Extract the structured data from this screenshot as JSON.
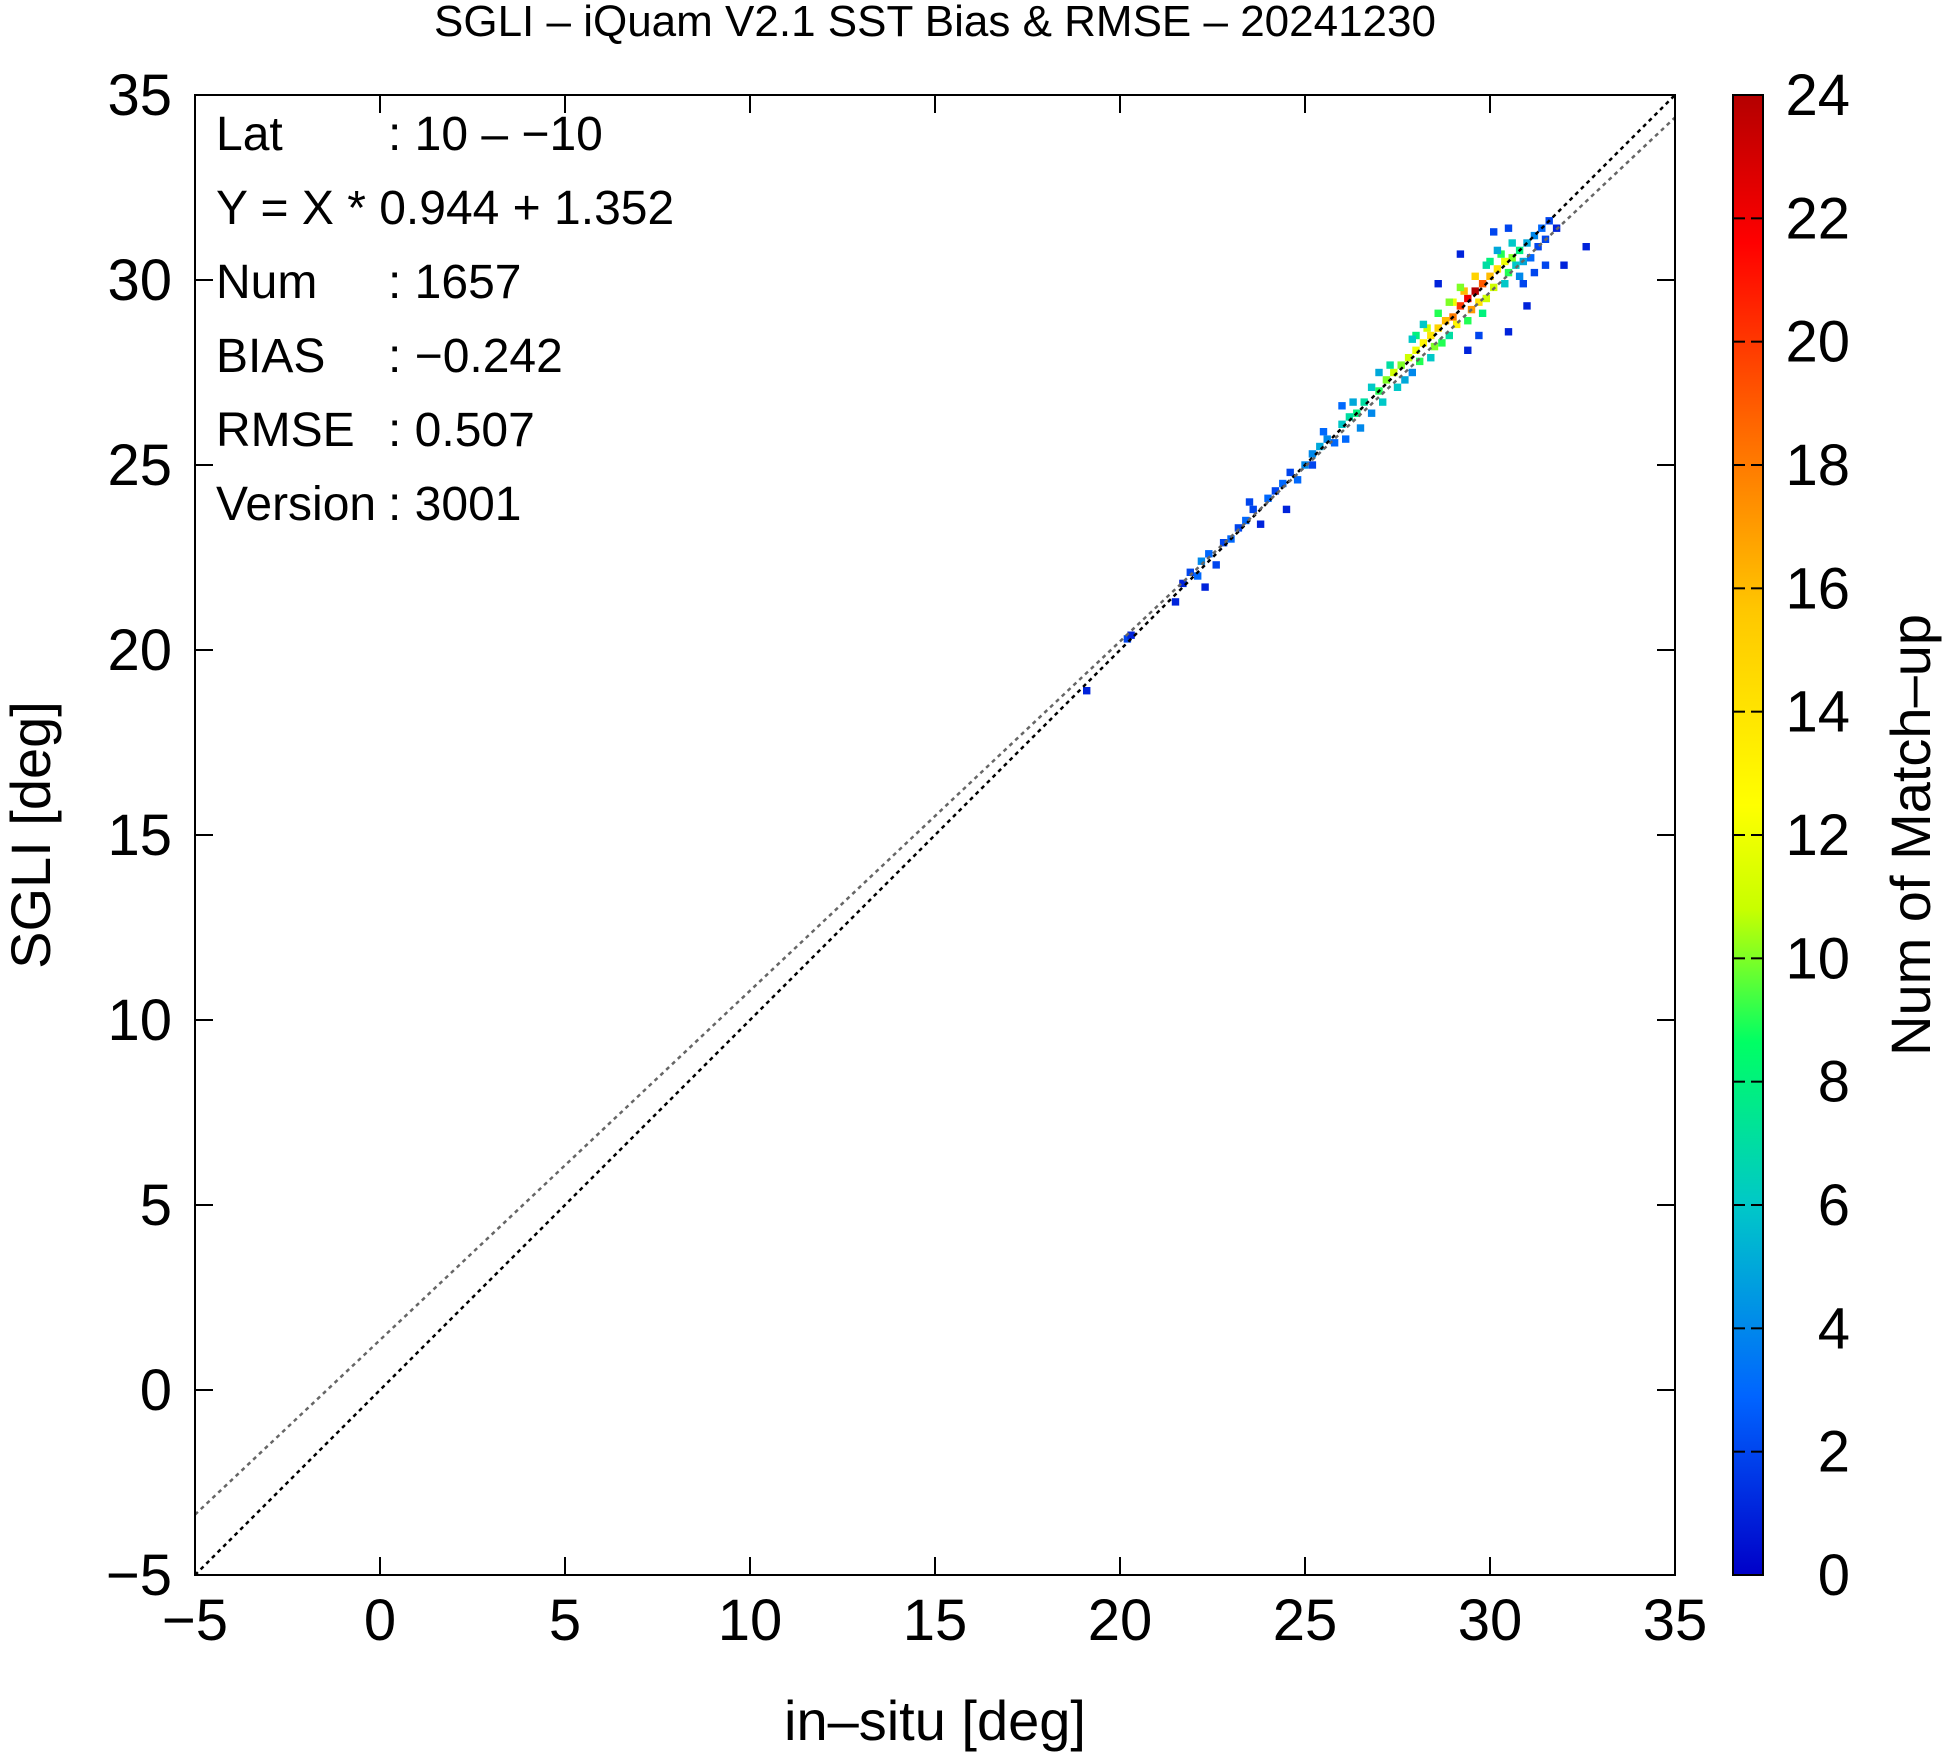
{
  "chart_data": {
    "type": "heatmap",
    "title": "SGLI – iQuam V2.1 SST Bias & RMSE  – 20241230",
    "xlabel": "in–situ [deg]",
    "ylabel": "SGLI [deg]",
    "xlim": [
      -5,
      35
    ],
    "ylim": [
      -5,
      35
    ],
    "x_ticks": [
      "−5",
      "0",
      "5",
      "10",
      "15",
      "20",
      "25",
      "30",
      "35"
    ],
    "y_ticks": [
      "−5",
      "0",
      "5",
      "10",
      "15",
      "20",
      "25",
      "30",
      "35"
    ],
    "grid": false,
    "colorbar": {
      "label": "Num of Match–up",
      "range": [
        0,
        24
      ],
      "ticks": [
        "0",
        "2",
        "4",
        "6",
        "8",
        "10",
        "12",
        "14",
        "16",
        "18",
        "20",
        "22",
        "24"
      ],
      "colors": [
        "#0000c8",
        "#0064ff",
        "#00c8c8",
        "#00ff64",
        "#c8ff00",
        "#ffff00",
        "#ffc800",
        "#ff6400",
        "#ff0000",
        "#b40000"
      ]
    },
    "reference_lines": [
      {
        "kind": "one-to-one",
        "slope": 1.0,
        "intercept": 0.0,
        "color": "#000000",
        "style": "dotted"
      },
      {
        "kind": "regression",
        "slope": 0.944,
        "intercept": 1.352,
        "color": "#666666",
        "style": "dotted"
      }
    ],
    "stats": [
      {
        "label": "Lat",
        "value": ": 10 – −10"
      },
      {
        "label": "Y = X * 0.944 + 1.352",
        "value": ""
      },
      {
        "label": "Num",
        "value": ": 1657"
      },
      {
        "label": "BIAS",
        "value": ": −0.242"
      },
      {
        "label": "RMSE",
        "value": ": 0.507"
      },
      {
        "label": "Version",
        "value": ": 3001"
      }
    ],
    "cells": [
      [
        19.1,
        18.9,
        1
      ],
      [
        20.2,
        20.3,
        2
      ],
      [
        20.3,
        20.4,
        1
      ],
      [
        21.5,
        21.3,
        1
      ],
      [
        21.7,
        21.8,
        1
      ],
      [
        21.9,
        22.1,
        2
      ],
      [
        22.1,
        22.0,
        3
      ],
      [
        22.2,
        22.4,
        4
      ],
      [
        22.4,
        22.6,
        3
      ],
      [
        22.6,
        22.3,
        2
      ],
      [
        22.3,
        21.7,
        1
      ],
      [
        22.8,
        22.9,
        2
      ],
      [
        23.0,
        23.0,
        3
      ],
      [
        23.2,
        23.3,
        2
      ],
      [
        23.4,
        23.5,
        3
      ],
      [
        23.6,
        23.8,
        2
      ],
      [
        23.8,
        23.4,
        1
      ],
      [
        23.5,
        24.0,
        2
      ],
      [
        24.0,
        24.1,
        3
      ],
      [
        24.2,
        24.3,
        2
      ],
      [
        24.4,
        24.5,
        3
      ],
      [
        24.6,
        24.8,
        2
      ],
      [
        24.8,
        24.6,
        3
      ],
      [
        25.0,
        25.0,
        4
      ],
      [
        24.5,
        23.8,
        1
      ],
      [
        25.2,
        25.3,
        4
      ],
      [
        25.4,
        25.5,
        5
      ],
      [
        25.6,
        25.7,
        4
      ],
      [
        25.8,
        25.6,
        3
      ],
      [
        25.5,
        25.9,
        3
      ],
      [
        25.2,
        25.0,
        2
      ],
      [
        26.0,
        26.1,
        6
      ],
      [
        26.2,
        26.3,
        7
      ],
      [
        26.4,
        26.4,
        8
      ],
      [
        26.6,
        26.7,
        7
      ],
      [
        26.3,
        26.7,
        5
      ],
      [
        26.1,
        25.7,
        3
      ],
      [
        26.5,
        26.0,
        4
      ],
      [
        26.8,
        27.1,
        6
      ],
      [
        26.0,
        26.6,
        3
      ],
      [
        27.0,
        27.0,
        9
      ],
      [
        27.2,
        27.3,
        10
      ],
      [
        27.4,
        27.5,
        11
      ],
      [
        27.6,
        27.7,
        10
      ],
      [
        27.3,
        27.7,
        7
      ],
      [
        27.1,
        26.7,
        6
      ],
      [
        27.5,
        27.1,
        6
      ],
      [
        27.8,
        27.9,
        11
      ],
      [
        27.0,
        27.5,
        5
      ],
      [
        27.7,
        27.3,
        5
      ],
      [
        26.8,
        26.4,
        4
      ],
      [
        27.9,
        27.5,
        4
      ],
      [
        28.0,
        28.1,
        12
      ],
      [
        28.2,
        28.3,
        13
      ],
      [
        28.4,
        28.5,
        14
      ],
      [
        28.6,
        28.7,
        15
      ],
      [
        28.3,
        28.7,
        11
      ],
      [
        28.1,
        27.8,
        9
      ],
      [
        28.5,
        28.2,
        10
      ],
      [
        28.8,
        28.9,
        16
      ],
      [
        28.0,
        28.5,
        8
      ],
      [
        28.7,
        28.3,
        9
      ],
      [
        28.9,
        28.5,
        7
      ],
      [
        27.9,
        28.4,
        6
      ],
      [
        28.6,
        29.1,
        9
      ],
      [
        28.4,
        27.9,
        6
      ],
      [
        28.2,
        28.8,
        6
      ],
      [
        29.0,
        29.0,
        18
      ],
      [
        29.2,
        29.3,
        20
      ],
      [
        29.4,
        29.5,
        22
      ],
      [
        29.6,
        29.7,
        24
      ],
      [
        29.3,
        29.7,
        16
      ],
      [
        29.1,
        28.8,
        13
      ],
      [
        29.5,
        29.2,
        17
      ],
      [
        29.8,
        29.9,
        19
      ],
      [
        29.0,
        29.4,
        12
      ],
      [
        29.7,
        29.4,
        14
      ],
      [
        29.9,
        29.5,
        11
      ],
      [
        28.9,
        29.4,
        10
      ],
      [
        29.6,
        30.1,
        15
      ],
      [
        29.4,
        28.9,
        9
      ],
      [
        29.2,
        29.8,
        10
      ],
      [
        29.8,
        29.1,
        8
      ],
      [
        30.0,
        30.1,
        16
      ],
      [
        30.2,
        30.3,
        14
      ],
      [
        30.4,
        30.5,
        12
      ],
      [
        30.6,
        30.6,
        10
      ],
      [
        30.3,
        30.7,
        9
      ],
      [
        30.1,
        29.8,
        11
      ],
      [
        30.5,
        30.2,
        9
      ],
      [
        30.8,
        30.8,
        8
      ],
      [
        30.0,
        30.5,
        8
      ],
      [
        30.7,
        30.4,
        6
      ],
      [
        30.9,
        30.5,
        5
      ],
      [
        29.9,
        30.4,
        7
      ],
      [
        30.6,
        31.0,
        6
      ],
      [
        30.4,
        29.9,
        6
      ],
      [
        30.2,
        30.8,
        5
      ],
      [
        30.8,
        30.1,
        4
      ],
      [
        31.0,
        31.0,
        5
      ],
      [
        31.2,
        31.2,
        4
      ],
      [
        31.4,
        31.4,
        3
      ],
      [
        31.6,
        31.6,
        2
      ],
      [
        31.1,
        30.6,
        3
      ],
      [
        31.3,
        30.9,
        2
      ],
      [
        31.5,
        31.1,
        2
      ],
      [
        31.8,
        31.4,
        1
      ],
      [
        31.2,
        30.2,
        2
      ],
      [
        30.9,
        29.9,
        2
      ],
      [
        31.0,
        29.3,
        1
      ],
      [
        30.5,
        28.6,
        1
      ],
      [
        29.7,
        28.5,
        2
      ],
      [
        29.4,
        28.1,
        1
      ],
      [
        32.0,
        30.4,
        1
      ],
      [
        32.6,
        30.9,
        1
      ],
      [
        30.1,
        31.3,
        2
      ],
      [
        30.5,
        31.4,
        2
      ],
      [
        29.2,
        30.7,
        1
      ],
      [
        28.6,
        29.9,
        1
      ],
      [
        31.5,
        30.4,
        2
      ]
    ]
  }
}
